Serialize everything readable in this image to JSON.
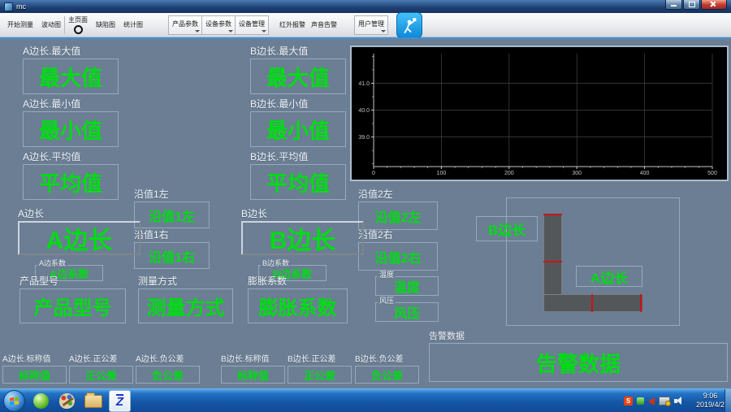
{
  "window": {
    "title": "mc"
  },
  "toolbar": {
    "buttons": [
      {
        "label": "开始测量"
      },
      {
        "label": "波动图"
      },
      {
        "label": "主页面",
        "selected": true
      },
      {
        "label": "缺陷图"
      },
      {
        "label": "统计图"
      },
      {
        "label": "产品参数",
        "dropdown": true
      },
      {
        "label": "设备参数",
        "dropdown": true
      },
      {
        "label": "设备管理",
        "dropdown": true
      },
      {
        "label": "红外报警"
      },
      {
        "label": "声音告警"
      },
      {
        "label": "用户管理",
        "dropdown": true
      }
    ]
  },
  "fields": {
    "a_max": {
      "label": "A边长.最大值",
      "value": "最大值"
    },
    "a_min": {
      "label": "A边长.最小值",
      "value": "最小值"
    },
    "a_avg": {
      "label": "A边长.平均值",
      "value": "平均值"
    },
    "b_max": {
      "label": "B边长.最大值",
      "value": "最大值"
    },
    "b_min": {
      "label": "B边长.最小值",
      "value": "最小值"
    },
    "b_avg": {
      "label": "B边长.平均值",
      "value": "平均值"
    },
    "edge1_left": {
      "label": "沿值1左",
      "value": "沿值1左"
    },
    "edge1_right": {
      "label": "沿值1右",
      "value": "沿值1右"
    },
    "edge2_left": {
      "label": "沿值2左",
      "value": "沿值2左"
    },
    "edge2_right": {
      "label": "沿值2右",
      "value": "沿值2右"
    },
    "a_length": {
      "label": "A边长",
      "value": "A边长"
    },
    "b_length": {
      "label": "B边长",
      "value": "B边长"
    },
    "a_coef": {
      "label": "A边系数",
      "value": "A边系数"
    },
    "b_coef": {
      "label": "B边系数",
      "value": "B边系数"
    },
    "product_model": {
      "label": "产品型号",
      "value": "产品型号"
    },
    "measure_mode": {
      "label": "测量方式",
      "value": "测量方式"
    },
    "expansion": {
      "label": "膨胀系数",
      "value": "膨胀系数"
    },
    "temperature": {
      "label": "温度",
      "value": "温度"
    },
    "wind_pressure": {
      "label": "风压",
      "value": "风压"
    },
    "alarm": {
      "label": "告警数据",
      "value": "告警数据"
    },
    "a_nominal": {
      "label": "A边长.标称值",
      "value": "标称值"
    },
    "a_pos_tol": {
      "label": "A边长.正公差",
      "value": "正公差"
    },
    "a_neg_tol": {
      "label": "A边长.负公差",
      "value": "负公差"
    },
    "b_nominal": {
      "label": "B边长.标称值",
      "value": "标称值"
    },
    "b_pos_tol": {
      "label": "B边长.正公差",
      "value": "正公差"
    },
    "b_neg_tol": {
      "label": "B边长.负公差",
      "value": "负公差"
    }
  },
  "shape": {
    "b_label": "B边长",
    "a_label": "A边长"
  },
  "chart_data": {
    "type": "line",
    "title": "",
    "xlabel": "",
    "ylabel": "",
    "xlim": [
      0,
      500
    ],
    "ylim": [
      37.9,
      42.1
    ],
    "x_ticks": [
      0,
      100,
      200,
      300,
      400,
      500
    ],
    "y_ticks": [
      41.0,
      40.0,
      39.0
    ],
    "x_minor_step": 20,
    "y_minor_step": 0.5,
    "grid": true,
    "series": [],
    "plot_bg": "#000000",
    "axis_color": "#c8c8c8",
    "grid_color": "#464646",
    "tick_label_color": "#c0c0c0"
  },
  "icons": {
    "tray_s_glyph": "S",
    "app_logo_glyph": "Z"
  },
  "taskbar": {
    "time": "9:06",
    "date": "2019/4/2"
  }
}
